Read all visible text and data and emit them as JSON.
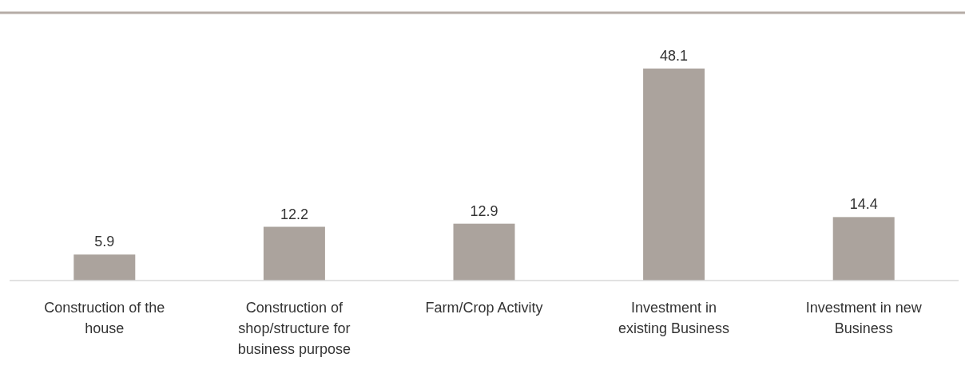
{
  "chart_data": {
    "type": "bar",
    "categories": [
      "Construction of the house",
      "Construction of shop/structure for business purpose",
      "Farm/Crop Activity",
      "Investment in existing Business",
      "Investment in new Business"
    ],
    "values": [
      5.9,
      12.2,
      12.9,
      48.1,
      14.4
    ],
    "color": "#aba39d",
    "data_labels": true
  }
}
